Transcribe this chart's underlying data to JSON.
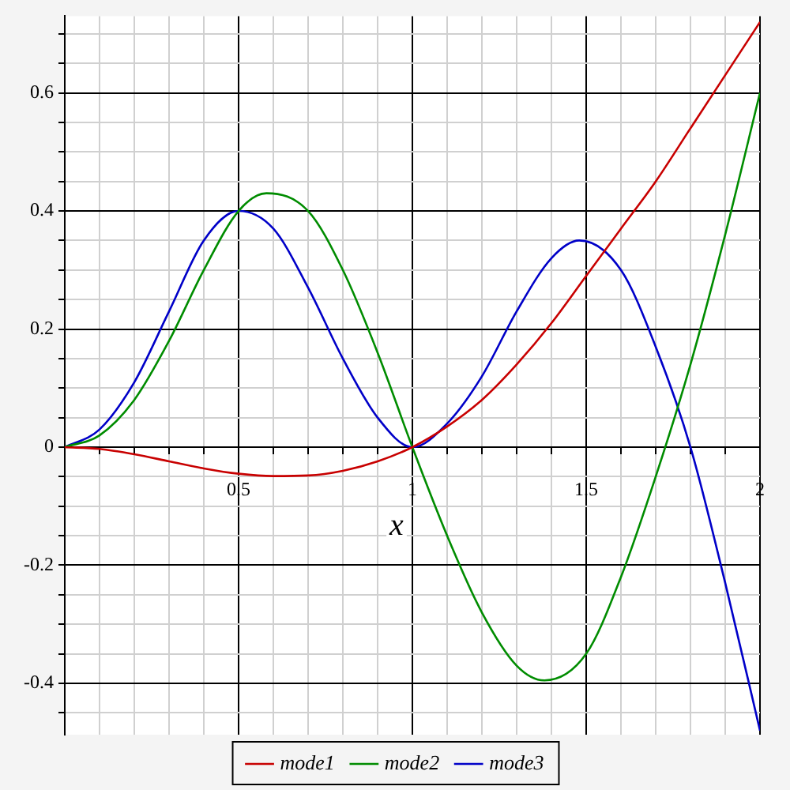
{
  "chart_data": {
    "type": "line",
    "xlabel": "x",
    "legend": "bottom",
    "grid": true,
    "marker": "none",
    "line_style": "solid",
    "xlim": [
      0,
      2
    ],
    "ylim": [
      -0.487,
      0.73
    ],
    "xticks": [
      {
        "value": 0,
        "label": null
      },
      {
        "value": 0.1,
        "label": null
      },
      {
        "value": 0.2,
        "label": null
      },
      {
        "value": 0.3,
        "label": null
      },
      {
        "value": 0.4,
        "label": null
      },
      0.5,
      {
        "value": 0.6,
        "label": null
      },
      {
        "value": 0.7,
        "label": null
      },
      {
        "value": 0.8,
        "label": null
      },
      {
        "value": 0.9,
        "label": null
      },
      1,
      {
        "value": 1.1,
        "label": null
      },
      {
        "value": 1.2,
        "label": null
      },
      {
        "value": 1.3,
        "label": null
      },
      {
        "value": 1.4,
        "label": null
      },
      1.5,
      {
        "value": 1.6,
        "label": null
      },
      {
        "value": 1.7,
        "label": null
      },
      {
        "value": 1.8,
        "label": null
      },
      {
        "value": 1.9,
        "label": null
      },
      2
    ],
    "yticks": [
      {
        "value": -0.45,
        "label": null
      },
      -0.4,
      {
        "value": -0.35,
        "label": null
      },
      {
        "value": -0.3,
        "label": null
      },
      {
        "value": -0.25,
        "label": null
      },
      -0.2,
      {
        "value": -0.15,
        "label": null
      },
      {
        "value": -0.1,
        "label": null
      },
      {
        "value": -0.05,
        "label": null
      },
      0,
      {
        "value": 0.05,
        "label": null
      },
      {
        "value": 0.1,
        "label": null
      },
      {
        "value": 0.15,
        "label": null
      },
      0.2,
      {
        "value": 0.25,
        "label": null
      },
      {
        "value": 0.3,
        "label": null
      },
      {
        "value": 0.35,
        "label": null
      },
      0.4,
      {
        "value": 0.45,
        "label": null
      },
      {
        "value": 0.5,
        "label": null
      },
      {
        "value": 0.55,
        "label": null
      },
      0.6,
      {
        "value": 0.65,
        "label": null
      },
      {
        "value": 0.7,
        "label": null
      }
    ],
    "series": [
      {
        "name": "mode1",
        "color": "#c80000",
        "x": [
          0,
          0.1,
          0.2,
          0.3,
          0.4,
          0.5,
          0.6,
          0.7,
          0.8,
          0.9,
          1,
          1.1,
          1.2,
          1.3,
          1.4,
          1.5,
          1.6,
          1.7,
          1.8,
          1.9,
          2
        ],
        "values": [
          0,
          -0.003,
          -0.012,
          -0.024,
          -0.036,
          -0.045,
          -0.049,
          -0.048,
          -0.04,
          -0.024,
          0,
          0.035,
          0.08,
          0.14,
          0.21,
          0.29,
          0.37,
          0.45,
          0.54,
          0.63,
          0.72
        ]
      },
      {
        "name": "mode2",
        "color": "#008c00",
        "x": [
          0,
          0.1,
          0.2,
          0.3,
          0.4,
          0.5,
          0.58,
          0.7,
          0.8,
          0.9,
          1,
          1.1,
          1.2,
          1.3,
          1.38,
          1.5,
          1.6,
          1.7,
          1.8,
          1.9,
          2
        ],
        "values": [
          0,
          0.02,
          0.08,
          0.18,
          0.3,
          0.4,
          0.43,
          0.4,
          0.3,
          0.16,
          0,
          -0.15,
          -0.28,
          -0.37,
          -0.395,
          -0.35,
          -0.22,
          -0.05,
          0.14,
          0.36,
          0.6
        ]
      },
      {
        "name": "mode3",
        "color": "#0000c8",
        "x": [
          0,
          0.1,
          0.2,
          0.3,
          0.4,
          0.5,
          0.6,
          0.7,
          0.8,
          0.9,
          1,
          1.1,
          1.2,
          1.3,
          1.4,
          1.48,
          1.6,
          1.7,
          1.8,
          1.9,
          2
        ],
        "values": [
          0,
          0.03,
          0.11,
          0.23,
          0.35,
          0.4,
          0.37,
          0.27,
          0.15,
          0.05,
          0,
          0.04,
          0.12,
          0.23,
          0.32,
          0.35,
          0.3,
          0.17,
          0,
          -0.23,
          -0.48
        ]
      }
    ]
  }
}
